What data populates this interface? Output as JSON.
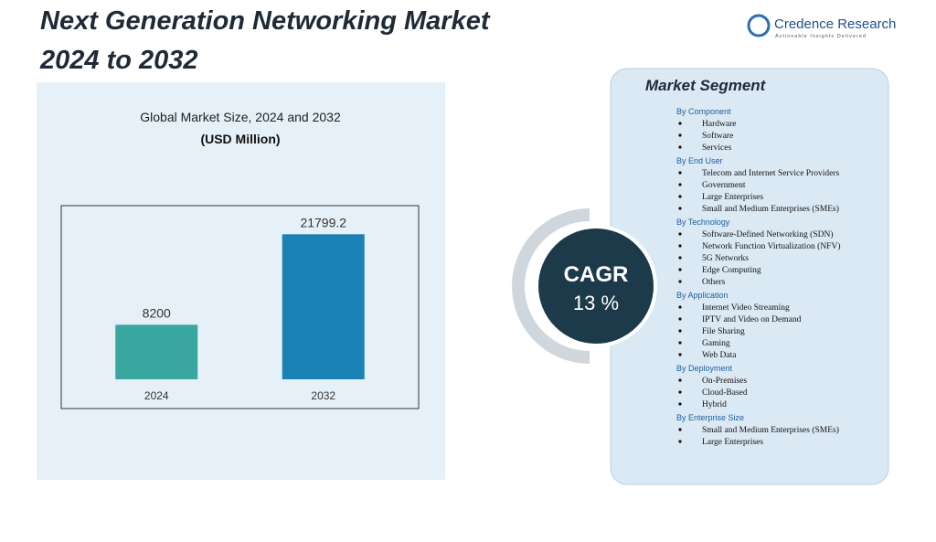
{
  "header": {
    "title_line1": "Next Generation Networking Market",
    "title_line2": "2024 to 2032"
  },
  "logo": {
    "name": "Credence Research",
    "tagline": "Actionable Insights Delivered"
  },
  "chart_data": {
    "type": "bar",
    "title": "Global Market Size,  2024 and 2032",
    "subtitle": "(USD Million)",
    "categories": [
      "2024",
      "2032"
    ],
    "values": [
      8200,
      21799.2
    ],
    "colors": [
      "#3aa6a0",
      "#1a82b4"
    ],
    "ylim": [
      0,
      25000
    ],
    "grid": true
  },
  "cagr": {
    "label": "CAGR",
    "value": "13 %"
  },
  "segments": {
    "title": "Market Segment",
    "groups": [
      {
        "heading": "By Component",
        "items": [
          "Hardware",
          "Software",
          "Services"
        ]
      },
      {
        "heading": "By End User",
        "items": [
          "Telecom and Internet Service Providers",
          "Government",
          "Large Enterprises",
          "Small and Medium Enterprises (SMEs)"
        ]
      },
      {
        "heading": "By Technology",
        "items": [
          "Software-Defined Networking (SDN)",
          "Network Function Virtualization (NFV)",
          "5G Networks",
          "Edge Computing",
          "Others"
        ]
      },
      {
        "heading": "By Application",
        "items": [
          "Internet Video Streaming",
          "IPTV and Video on Demand",
          "File Sharing",
          "Gaming",
          "Web Data"
        ]
      },
      {
        "heading": "By Deployment",
        "items": [
          "On-Premises",
          "Cloud-Based",
          "Hybrid"
        ]
      },
      {
        "heading": "By Enterprise Size",
        "items": [
          "Small and Medium Enterprises (SMEs)",
          "Large Enterprises"
        ]
      }
    ]
  }
}
